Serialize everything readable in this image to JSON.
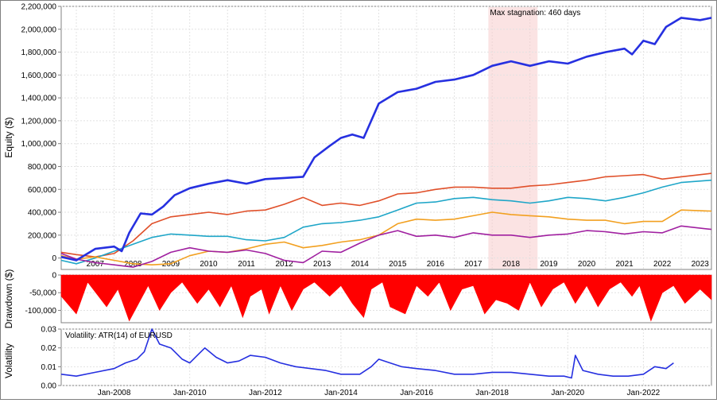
{
  "chart_data": [
    {
      "type": "line",
      "panel": "equity",
      "ylabel": "Equity ($)",
      "ylim": [
        -100000,
        2200000
      ],
      "xlim": [
        2006.6,
        2023.8
      ],
      "y_ticks": [
        0,
        200000,
        400000,
        600000,
        800000,
        1000000,
        1200000,
        1400000,
        1600000,
        1800000,
        2000000,
        2200000
      ],
      "y_tick_labels": [
        "0",
        "200,000",
        "400,000",
        "600,000",
        "800,000",
        "1,000,000",
        "1,200,000",
        "1,400,000",
        "1,600,000",
        "1,800,000",
        "2,000,000",
        "2,200,000"
      ],
      "x_tick_labels": [
        "2007",
        "2008",
        "2009",
        "2010",
        "2011",
        "2012",
        "2013",
        "2014",
        "2015",
        "2016",
        "2017",
        "2018",
        "2019",
        "2020",
        "2021",
        "2022",
        "2023"
      ],
      "grid": true,
      "annotation": {
        "text": "Max stagnation: 460 days",
        "x_start": 2017.9,
        "x_end": 2019.2,
        "color": "#f8c8c8"
      },
      "series": [
        {
          "color": "#2630e0",
          "x": [
            2006.6,
            2007.0,
            2007.5,
            2008.0,
            2008.2,
            2008.4,
            2008.7,
            2009.0,
            2009.3,
            2009.6,
            2010.0,
            2010.5,
            2011.0,
            2011.5,
            2012.0,
            2012.5,
            2013.0,
            2013.3,
            2013.7,
            2014.0,
            2014.3,
            2014.6,
            2015.0,
            2015.5,
            2016.0,
            2016.5,
            2017.0,
            2017.5,
            2018.0,
            2018.5,
            2019.0,
            2019.5,
            2020.0,
            2020.5,
            2021.0,
            2021.5,
            2021.7,
            2022.0,
            2022.3,
            2022.6,
            2023.0,
            2023.5,
            2023.8
          ],
          "y": [
            10000,
            -20000,
            80000,
            100000,
            60000,
            220000,
            390000,
            380000,
            450000,
            550000,
            610000,
            650000,
            680000,
            650000,
            690000,
            700000,
            710000,
            880000,
            980000,
            1050000,
            1080000,
            1050000,
            1350000,
            1450000,
            1480000,
            1540000,
            1560000,
            1600000,
            1680000,
            1720000,
            1680000,
            1720000,
            1700000,
            1760000,
            1800000,
            1830000,
            1780000,
            1900000,
            1870000,
            2020000,
            2100000,
            2080000,
            2100000
          ]
        },
        {
          "color": "#e0502a",
          "x": [
            2006.6,
            2007.0,
            2007.5,
            2008.0,
            2008.5,
            2009.0,
            2009.5,
            2010.0,
            2010.5,
            2011.0,
            2011.5,
            2012.0,
            2012.5,
            2013.0,
            2013.5,
            2014.0,
            2014.5,
            2015.0,
            2015.5,
            2016.0,
            2016.5,
            2017.0,
            2017.5,
            2018.0,
            2018.5,
            2019.0,
            2019.5,
            2020.0,
            2020.5,
            2021.0,
            2021.5,
            2022.0,
            2022.5,
            2023.0,
            2023.8
          ],
          "y": [
            50000,
            30000,
            10000,
            40000,
            150000,
            300000,
            360000,
            380000,
            400000,
            380000,
            410000,
            420000,
            470000,
            530000,
            460000,
            480000,
            460000,
            500000,
            560000,
            570000,
            600000,
            620000,
            620000,
            610000,
            610000,
            630000,
            640000,
            660000,
            680000,
            710000,
            720000,
            730000,
            690000,
            710000,
            740000
          ]
        },
        {
          "color": "#1fa6c8",
          "x": [
            2006.6,
            2007.0,
            2007.5,
            2008.0,
            2008.5,
            2009.0,
            2009.5,
            2010.0,
            2010.5,
            2011.0,
            2011.5,
            2012.0,
            2012.5,
            2013.0,
            2013.5,
            2014.0,
            2014.5,
            2015.0,
            2015.5,
            2016.0,
            2016.5,
            2017.0,
            2017.5,
            2018.0,
            2018.5,
            2019.0,
            2019.5,
            2020.0,
            2020.5,
            2021.0,
            2021.5,
            2022.0,
            2022.5,
            2023.0,
            2023.8
          ],
          "y": [
            -20000,
            -50000,
            0,
            60000,
            120000,
            180000,
            210000,
            200000,
            190000,
            190000,
            160000,
            150000,
            180000,
            270000,
            300000,
            310000,
            330000,
            360000,
            420000,
            480000,
            490000,
            520000,
            530000,
            510000,
            500000,
            480000,
            500000,
            530000,
            520000,
            500000,
            530000,
            570000,
            620000,
            660000,
            680000
          ]
        },
        {
          "color": "#f2a020",
          "x": [
            2006.6,
            2007.0,
            2007.5,
            2008.0,
            2008.5,
            2009.0,
            2009.5,
            2010.0,
            2010.5,
            2011.0,
            2011.5,
            2012.0,
            2012.5,
            2013.0,
            2013.5,
            2014.0,
            2014.5,
            2015.0,
            2015.5,
            2016.0,
            2016.5,
            2017.0,
            2017.5,
            2018.0,
            2018.5,
            2019.0,
            2019.5,
            2020.0,
            2020.5,
            2021.0,
            2021.5,
            2022.0,
            2022.5,
            2023.0,
            2023.8
          ],
          "y": [
            20000,
            -10000,
            10000,
            -20000,
            -50000,
            -60000,
            -50000,
            20000,
            60000,
            50000,
            80000,
            120000,
            140000,
            90000,
            110000,
            140000,
            160000,
            200000,
            300000,
            340000,
            330000,
            340000,
            370000,
            400000,
            380000,
            370000,
            360000,
            340000,
            330000,
            330000,
            300000,
            320000,
            320000,
            420000,
            410000
          ]
        },
        {
          "color": "#a020a0",
          "x": [
            2006.6,
            2007.0,
            2007.5,
            2008.0,
            2008.5,
            2009.0,
            2009.5,
            2010.0,
            2010.5,
            2011.0,
            2011.5,
            2012.0,
            2012.5,
            2013.0,
            2013.5,
            2014.0,
            2014.5,
            2015.0,
            2015.5,
            2016.0,
            2016.5,
            2017.0,
            2017.5,
            2018.0,
            2018.5,
            2019.0,
            2019.5,
            2020.0,
            2020.5,
            2021.0,
            2021.5,
            2022.0,
            2022.5,
            2023.0,
            2023.8
          ],
          "y": [
            40000,
            -10000,
            -40000,
            -60000,
            -80000,
            -30000,
            50000,
            90000,
            60000,
            50000,
            70000,
            40000,
            -20000,
            -40000,
            60000,
            50000,
            130000,
            200000,
            240000,
            190000,
            200000,
            180000,
            220000,
            200000,
            200000,
            180000,
            200000,
            210000,
            240000,
            230000,
            210000,
            230000,
            220000,
            280000,
            250000
          ]
        }
      ]
    },
    {
      "type": "area",
      "panel": "drawdown",
      "ylabel": "Drawdown ($)",
      "ylim": [
        -135000,
        0
      ],
      "y_ticks": [
        0,
        -50000,
        -100000
      ],
      "y_tick_labels": [
        "0",
        "-50,000",
        "-100,000"
      ],
      "grid": true,
      "color": "#ff0000",
      "x": [
        2006.6,
        2007.0,
        2007.3,
        2007.8,
        2008.1,
        2008.4,
        2008.7,
        2008.9,
        2009.2,
        2009.5,
        2009.8,
        2010.2,
        2010.5,
        2010.8,
        2011.1,
        2011.4,
        2011.6,
        2011.9,
        2012.1,
        2012.4,
        2012.7,
        2013.0,
        2013.3,
        2013.7,
        2014.0,
        2014.3,
        2014.6,
        2014.8,
        2015.1,
        2015.3,
        2015.7,
        2016.0,
        2016.3,
        2016.6,
        2016.9,
        2017.2,
        2017.5,
        2017.8,
        2018.1,
        2018.4,
        2018.7,
        2019.0,
        2019.3,
        2019.6,
        2019.9,
        2020.2,
        2020.5,
        2020.8,
        2021.1,
        2021.4,
        2021.7,
        2021.9,
        2022.2,
        2022.5,
        2022.8,
        2023.1,
        2023.5,
        2023.8
      ],
      "y": [
        -60000,
        -110000,
        -20000,
        -90000,
        -40000,
        -130000,
        -70000,
        -30000,
        -100000,
        -50000,
        -20000,
        -80000,
        -40000,
        -90000,
        -30000,
        -120000,
        -60000,
        -40000,
        -110000,
        -30000,
        -100000,
        -40000,
        -20000,
        -60000,
        -30000,
        -80000,
        -120000,
        -40000,
        -20000,
        -90000,
        -110000,
        -30000,
        -60000,
        -20000,
        -100000,
        -40000,
        -30000,
        -110000,
        -70000,
        -80000,
        -100000,
        -20000,
        -90000,
        -40000,
        -20000,
        -80000,
        -30000,
        -90000,
        -40000,
        -20000,
        -60000,
        -30000,
        -130000,
        -50000,
        -30000,
        -80000,
        -40000,
        -70000
      ]
    },
    {
      "type": "line",
      "panel": "volatility",
      "ylabel": "Volatility",
      "title": "Volatility: ATR(14) of EURUSD",
      "ylim": [
        0,
        0.03
      ],
      "y_ticks": [
        0.0,
        0.01,
        0.02,
        0.03
      ],
      "y_tick_labels": [
        "0.00",
        "0.01",
        "0.02",
        "0.03"
      ],
      "x_tick_labels": [
        "Jan-2008",
        "Jan-2010",
        "Jan-2012",
        "Jan-2014",
        "Jan-2016",
        "Jan-2018",
        "Jan-2020",
        "Jan-2022"
      ],
      "grid": true,
      "color": "#2630e0",
      "x": [
        2006.6,
        2007.0,
        2007.5,
        2008.0,
        2008.3,
        2008.6,
        2008.8,
        2009.0,
        2009.2,
        2009.5,
        2009.8,
        2010.0,
        2010.2,
        2010.4,
        2010.7,
        2011.0,
        2011.3,
        2011.6,
        2012.0,
        2012.4,
        2012.8,
        2013.2,
        2013.6,
        2014.0,
        2014.5,
        2014.8,
        2015.0,
        2015.3,
        2015.6,
        2016.0,
        2016.5,
        2017.0,
        2017.5,
        2018.0,
        2018.5,
        2019.0,
        2019.5,
        2019.9,
        2020.1,
        2020.2,
        2020.4,
        2020.8,
        2021.2,
        2021.6,
        2022.0,
        2022.3,
        2022.6,
        2022.8
      ],
      "y": [
        0.006,
        0.005,
        0.007,
        0.009,
        0.012,
        0.014,
        0.018,
        0.03,
        0.022,
        0.02,
        0.014,
        0.012,
        0.016,
        0.02,
        0.015,
        0.012,
        0.013,
        0.016,
        0.015,
        0.012,
        0.01,
        0.009,
        0.008,
        0.006,
        0.006,
        0.01,
        0.014,
        0.012,
        0.01,
        0.009,
        0.008,
        0.006,
        0.006,
        0.007,
        0.007,
        0.006,
        0.005,
        0.005,
        0.004,
        0.016,
        0.008,
        0.006,
        0.005,
        0.005,
        0.006,
        0.01,
        0.009,
        0.012
      ]
    }
  ]
}
